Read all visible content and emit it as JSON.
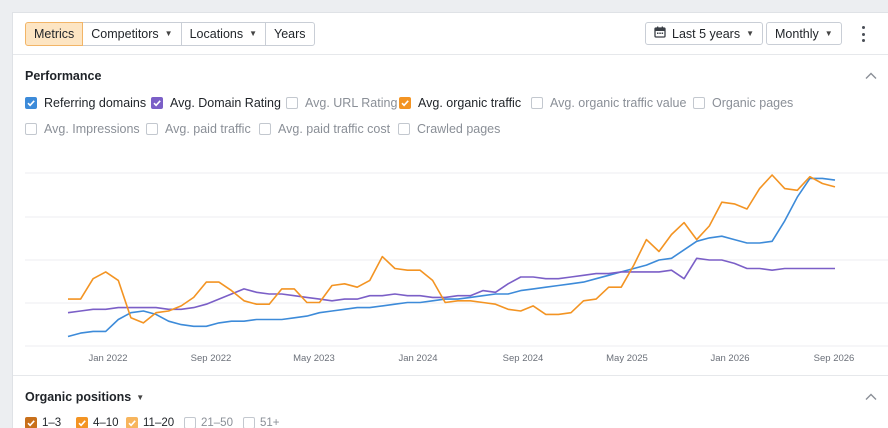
{
  "toolbar": {
    "tabs": [
      {
        "label": "Metrics",
        "active": true,
        "dropdown": false
      },
      {
        "label": "Competitors",
        "active": false,
        "dropdown": true
      },
      {
        "label": "Locations",
        "active": false,
        "dropdown": true
      },
      {
        "label": "Years",
        "active": false,
        "dropdown": false
      }
    ],
    "date_range": "Last 5 years",
    "granularity": "Monthly",
    "more_icon": "kebab-vertical-icon"
  },
  "performance": {
    "title": "Performance",
    "collapse_icon": "chevron-up-icon",
    "metrics": [
      {
        "label": "Referring domains",
        "checked": true,
        "color": "#3d8bd9"
      },
      {
        "label": "Avg. Domain Rating",
        "checked": true,
        "color": "#7b5fc7"
      },
      {
        "label": "Avg. URL Rating",
        "checked": false,
        "color": ""
      },
      {
        "label": "Avg. organic traffic",
        "checked": true,
        "color": "#f39423"
      },
      {
        "label": "Avg. organic traffic value",
        "checked": false,
        "color": ""
      },
      {
        "label": "Organic pages",
        "checked": false,
        "color": ""
      },
      {
        "label": "Avg. Impressions",
        "checked": false,
        "color": ""
      },
      {
        "label": "Avg. paid traffic",
        "checked": false,
        "color": ""
      },
      {
        "label": "Avg. paid traffic cost",
        "checked": false,
        "color": ""
      },
      {
        "label": "Crawled pages",
        "checked": false,
        "color": ""
      }
    ]
  },
  "chart_data": {
    "type": "line",
    "x_ticks": [
      "Jan 2022",
      "Sep 2022",
      "May 2023",
      "Jan 2024",
      "Sep 2024",
      "May 2025",
      "Jan 2026",
      "Sep 2026"
    ],
    "grid": true,
    "y_tick_labels_shown": false,
    "series": [
      {
        "name": "Referring domains",
        "color": "#3d8bd9",
        "values": [
          0.05,
          0.07,
          0.08,
          0.08,
          0.15,
          0.19,
          0.2,
          0.18,
          0.14,
          0.12,
          0.11,
          0.11,
          0.13,
          0.14,
          0.14,
          0.15,
          0.15,
          0.15,
          0.16,
          0.17,
          0.19,
          0.2,
          0.21,
          0.22,
          0.22,
          0.23,
          0.24,
          0.25,
          0.25,
          0.26,
          0.27,
          0.27,
          0.28,
          0.29,
          0.3,
          0.3,
          0.32,
          0.33,
          0.34,
          0.35,
          0.36,
          0.37,
          0.39,
          0.41,
          0.43,
          0.45,
          0.47,
          0.5,
          0.51,
          0.56,
          0.61,
          0.63,
          0.64,
          0.62,
          0.6,
          0.6,
          0.61,
          0.73,
          0.87,
          0.98,
          0.98,
          0.97
        ]
      },
      {
        "name": "Avg. Domain Rating",
        "color": "#7b5fc7",
        "values": [
          0.19,
          0.2,
          0.21,
          0.21,
          0.22,
          0.22,
          0.22,
          0.22,
          0.21,
          0.21,
          0.22,
          0.24,
          0.27,
          0.3,
          0.33,
          0.31,
          0.3,
          0.3,
          0.29,
          0.28,
          0.27,
          0.26,
          0.27,
          0.27,
          0.29,
          0.29,
          0.3,
          0.29,
          0.29,
          0.28,
          0.28,
          0.29,
          0.29,
          0.32,
          0.31,
          0.36,
          0.4,
          0.4,
          0.39,
          0.39,
          0.4,
          0.41,
          0.42,
          0.42,
          0.43,
          0.43,
          0.43,
          0.43,
          0.44,
          0.39,
          0.51,
          0.5,
          0.5,
          0.48,
          0.45,
          0.45,
          0.44,
          0.45,
          0.45,
          0.45,
          0.45,
          0.45
        ]
      },
      {
        "name": "Avg. organic traffic",
        "color": "#f39423",
        "values": [
          0.27,
          0.27,
          0.39,
          0.43,
          0.38,
          0.16,
          0.13,
          0.19,
          0.2,
          0.23,
          0.28,
          0.37,
          0.37,
          0.32,
          0.26,
          0.24,
          0.24,
          0.33,
          0.33,
          0.25,
          0.25,
          0.35,
          0.36,
          0.34,
          0.38,
          0.52,
          0.45,
          0.44,
          0.44,
          0.38,
          0.25,
          0.26,
          0.26,
          0.25,
          0.24,
          0.21,
          0.2,
          0.23,
          0.18,
          0.18,
          0.19,
          0.26,
          0.27,
          0.34,
          0.34,
          0.47,
          0.62,
          0.55,
          0.65,
          0.72,
          0.62,
          0.7,
          0.84,
          0.83,
          0.8,
          0.92,
          1.0,
          0.92,
          0.91,
          0.99,
          0.95,
          0.93
        ]
      }
    ]
  },
  "organic_positions": {
    "title": "Organic positions",
    "collapse_icon": "chevron-up-icon",
    "buckets": [
      {
        "label": "1–3",
        "checked": true,
        "color": "#c8701b"
      },
      {
        "label": "4–10",
        "checked": true,
        "color": "#f39423"
      },
      {
        "label": "11–20",
        "checked": true,
        "color": "#f7b55d"
      },
      {
        "label": "21–50",
        "checked": false,
        "color": ""
      },
      {
        "label": "51+",
        "checked": false,
        "color": ""
      }
    ]
  }
}
